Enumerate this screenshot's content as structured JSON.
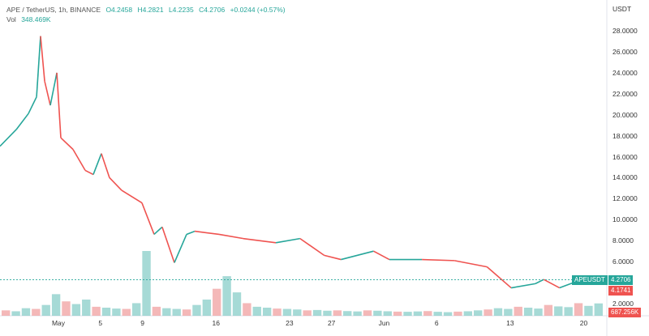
{
  "header": {
    "symbol": "APE / TetherUS, 1h, BINANCE",
    "open": "O4.2458",
    "high": "H4.2821",
    "low": "L4.2235",
    "close": "C4.2706",
    "change": "+0.0244 (+0.57%)",
    "vol_label": "Vol",
    "vol_value": "348.469K"
  },
  "axis": {
    "unit": "USDT"
  },
  "tags": {
    "symbol": "APEUSDT",
    "price": "4.2706",
    "second": "4.1741",
    "volume": "687.256K"
  },
  "colors": {
    "up": "#26a69a",
    "down": "#ef5350"
  },
  "chart_data": {
    "type": "line",
    "title": "APE / TetherUS, 1h, BINANCE",
    "xlabel": "",
    "ylabel": "USDT",
    "ylim": [
      2,
      28
    ],
    "y_ticks": [
      "28.0000",
      "26.0000",
      "24.0000",
      "22.0000",
      "20.0000",
      "18.0000",
      "16.0000",
      "14.0000",
      "12.0000",
      "10.0000",
      "8.0000",
      "6.0000",
      "2.0000"
    ],
    "x_ticks": [
      {
        "label": "May",
        "day": 0
      },
      {
        "label": "5",
        "day": 4
      },
      {
        "label": "9",
        "day": 8
      },
      {
        "label": "16",
        "day": 15
      },
      {
        "label": "23",
        "day": 22
      },
      {
        "label": "27",
        "day": 26
      },
      {
        "label": "Jun",
        "day": 31
      },
      {
        "label": "6",
        "day": 36
      },
      {
        "label": "13",
        "day": 43
      },
      {
        "label": "20",
        "day": 50
      }
    ],
    "price": {
      "day": [
        -5.56,
        -4.0,
        -2.86,
        -2.08,
        -1.7,
        -1.31,
        -0.77,
        -0.15,
        0.23,
        1.39,
        2.55,
        3.32,
        4.09,
        4.86,
        6.02,
        7.95,
        9.11,
        9.88,
        11.04,
        12.2,
        12.97,
        15.29,
        17.6,
        20.7,
        23.0,
        25.3,
        26.9,
        30.0,
        31.5,
        34.6,
        37.7,
        40.8,
        43.1,
        45.4,
        46.2,
        47.7,
        49.3,
        49.9
      ],
      "value": [
        17.0,
        18.6,
        20.1,
        21.7,
        27.5,
        23.2,
        20.9,
        24.0,
        17.8,
        16.7,
        14.7,
        14.3,
        16.3,
        14.0,
        12.8,
        11.6,
        8.6,
        9.3,
        5.9,
        8.6,
        8.9,
        8.6,
        8.2,
        7.8,
        8.2,
        6.6,
        6.2,
        7.0,
        6.2,
        6.2,
        6.1,
        5.5,
        3.5,
        3.9,
        4.3,
        3.5,
        4.1,
        4.27
      ]
    },
    "volume_k": [
      300,
      250,
      420,
      380,
      600,
      1200,
      800,
      650,
      900,
      500,
      450,
      400,
      380,
      700,
      3600,
      500,
      420,
      380,
      350,
      600,
      900,
      1500,
      2200,
      1300,
      700,
      500,
      450,
      400,
      380,
      350,
      300,
      320,
      280,
      300,
      260,
      240,
      300,
      280,
      250,
      230,
      220,
      240,
      260,
      220,
      200,
      230,
      250,
      300,
      350,
      420,
      380,
      500,
      450,
      400,
      600,
      520,
      480,
      700,
      550,
      687
    ]
  }
}
